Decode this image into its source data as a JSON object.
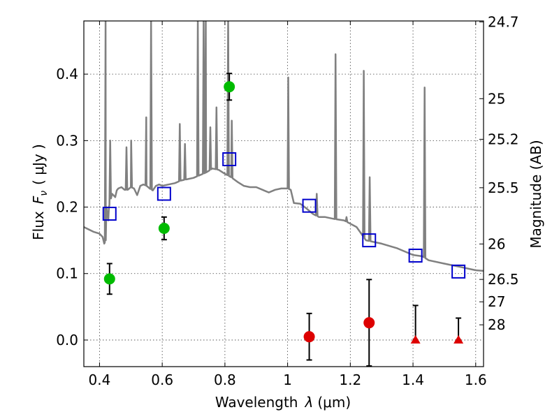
{
  "chart_data": {
    "type": "scatter",
    "xlabel_text": "Wavelength",
    "xlabel_symbol": "λ",
    "xlabel_unit": "(μm)",
    "ylabel_text": "Flux",
    "ylabel_symbol": "F",
    "ylabel_subscript": "ν",
    "ylabel_unit": "( μJy )",
    "y2label": "Magnitude (AB)",
    "xlim": [
      0.35,
      1.625
    ],
    "ylim": [
      -0.04,
      0.48
    ],
    "grid": true,
    "xticks": [
      0.4,
      0.6,
      0.8,
      1.0,
      1.2,
      1.4,
      1.6
    ],
    "xtick_labels": [
      "0.4",
      "0.6",
      "0.8",
      "1",
      "1.2",
      "1.4",
      "1.6"
    ],
    "yticks": [
      0.0,
      0.1,
      0.2,
      0.3,
      0.4
    ],
    "ytick_labels": [
      "0.0",
      "0.1",
      "0.2",
      "0.3",
      "0.4"
    ],
    "y2_ticks": [
      {
        "label": "24.7",
        "flux": 0.4786
      },
      {
        "label": "25",
        "flux": 0.3631
      },
      {
        "label": "25.2",
        "flux": 0.302
      },
      {
        "label": "25.5",
        "flux": 0.2291
      },
      {
        "label": "26",
        "flux": 0.1445
      },
      {
        "label": "26.5",
        "flux": 0.0912
      },
      {
        "label": "27",
        "flux": 0.0575
      },
      {
        "label": "28",
        "flux": 0.0229
      }
    ],
    "series": [
      {
        "kind": "model-spectrum",
        "color": "#808080",
        "x": [
          0.35,
          0.38,
          0.4,
          0.41,
          0.415,
          0.42,
          0.422,
          0.425,
          0.428,
          0.43,
          0.44,
          0.45,
          0.455,
          0.46,
          0.47,
          0.48,
          0.49,
          0.5,
          0.51,
          0.52,
          0.53,
          0.54,
          0.55,
          0.56,
          0.57,
          0.58,
          0.59,
          0.6,
          0.62,
          0.64,
          0.65,
          0.66,
          0.68,
          0.7,
          0.72,
          0.74,
          0.76,
          0.78,
          0.8,
          0.82,
          0.84,
          0.86,
          0.88,
          0.9,
          0.92,
          0.94,
          0.96,
          0.98,
          1.0,
          1.01,
          1.02,
          1.04,
          1.06,
          1.08,
          1.1,
          1.12,
          1.15,
          1.18,
          1.2,
          1.22,
          1.25,
          1.3,
          1.35,
          1.4,
          1.43,
          1.45,
          1.5,
          1.55,
          1.6,
          1.625
        ],
        "y": [
          0.17,
          0.163,
          0.16,
          0.155,
          0.145,
          0.15,
          0.2,
          0.19,
          0.18,
          0.2,
          0.22,
          0.215,
          0.225,
          0.228,
          0.23,
          0.226,
          0.226,
          0.23,
          0.228,
          0.218,
          0.232,
          0.234,
          0.232,
          0.228,
          0.225,
          0.232,
          0.234,
          0.232,
          0.234,
          0.236,
          0.238,
          0.24,
          0.242,
          0.244,
          0.248,
          0.252,
          0.258,
          0.256,
          0.25,
          0.245,
          0.238,
          0.232,
          0.23,
          0.23,
          0.226,
          0.222,
          0.226,
          0.228,
          0.228,
          0.226,
          0.206,
          0.205,
          0.198,
          0.19,
          0.185,
          0.185,
          0.182,
          0.18,
          0.175,
          0.17,
          0.15,
          0.145,
          0.138,
          0.128,
          0.126,
          0.12,
          0.115,
          0.11,
          0.105,
          0.104
        ],
        "emission_lines": [
          {
            "x": 0.4193,
            "peak": 0.48
          },
          {
            "x": 0.434,
            "peak": 0.3
          },
          {
            "x": 0.486,
            "peak": 0.29
          },
          {
            "x": 0.501,
            "peak": 0.3
          },
          {
            "x": 0.549,
            "peak": 0.335
          },
          {
            "x": 0.5645,
            "peak": 0.48
          },
          {
            "x": 0.656,
            "peak": 0.325
          },
          {
            "x": 0.6725,
            "peak": 0.295
          },
          {
            "x": 0.7136,
            "peak": 0.48
          },
          {
            "x": 0.7321,
            "peak": 0.48
          },
          {
            "x": 0.739,
            "peak": 0.48
          },
          {
            "x": 0.7535,
            "peak": 0.32
          },
          {
            "x": 0.7731,
            "peak": 0.35
          },
          {
            "x": 0.8103,
            "peak": 0.48
          },
          {
            "x": 0.8219,
            "peak": 0.33
          },
          {
            "x": 1.002,
            "peak": 0.395
          },
          {
            "x": 1.093,
            "peak": 0.22
          },
          {
            "x": 1.153,
            "peak": 0.43
          },
          {
            "x": 1.188,
            "peak": 0.185
          },
          {
            "x": 1.243,
            "peak": 0.405
          },
          {
            "x": 1.262,
            "peak": 0.245
          },
          {
            "x": 1.437,
            "peak": 0.38
          }
        ]
      },
      {
        "kind": "model-photometry",
        "marker": "open-square",
        "color": "#0000cc",
        "x": [
          0.432,
          0.606,
          0.814,
          1.069,
          1.26,
          1.408,
          1.545
        ],
        "y": [
          0.19,
          0.22,
          0.272,
          0.202,
          0.15,
          0.127,
          0.103
        ]
      },
      {
        "kind": "detections",
        "marker": "filled-circle",
        "color": "#00bb00",
        "x": [
          0.432,
          0.606,
          0.814
        ],
        "y": [
          0.092,
          0.168,
          0.381
        ],
        "yerr": [
          0.023,
          0.017,
          0.02
        ]
      },
      {
        "kind": "non-detections",
        "marker": "filled-circle",
        "color": "#dd0000",
        "x": [
          1.069,
          1.26
        ],
        "y": [
          0.005,
          0.026
        ],
        "yerr": [
          0.035,
          0.065
        ]
      },
      {
        "kind": "upper-limits",
        "marker": "filled-triangle",
        "color": "#dd0000",
        "x": [
          1.408,
          1.545
        ],
        "y": [
          0.0,
          0.0
        ],
        "yerr_up": [
          0.052,
          0.033
        ]
      }
    ]
  }
}
